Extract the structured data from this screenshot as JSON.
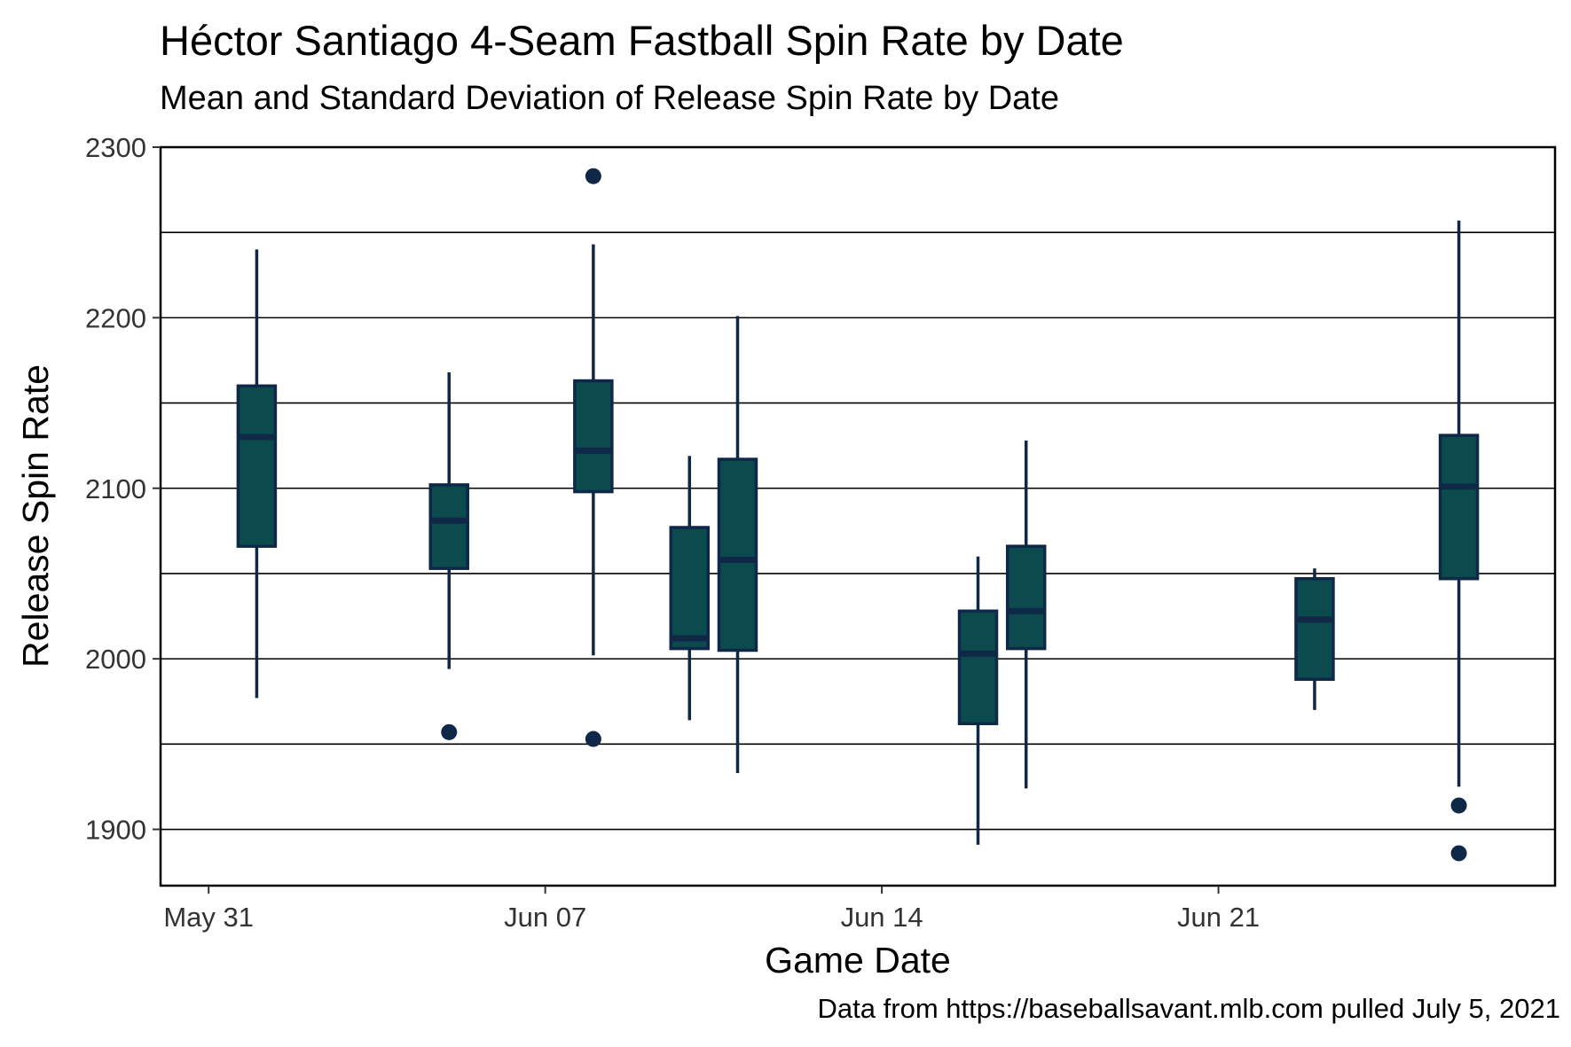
{
  "chart_data": {
    "type": "box",
    "title": "Héctor Santiago 4-Seam Fastball Spin Rate by Date",
    "subtitle": "Mean and Standard Deviation of Release Spin Rate by Date",
    "xlabel": "Game Date",
    "ylabel": "Release Spin Rate",
    "caption": "Data from https://baseballsavant.mlb.com pulled July 5, 2021",
    "x_ticks": [
      {
        "label": "May 31",
        "date": "2021-05-31"
      },
      {
        "label": "Jun 07",
        "date": "2021-06-07"
      },
      {
        "label": "Jun 14",
        "date": "2021-06-14"
      },
      {
        "label": "Jun 21",
        "date": "2021-06-21"
      }
    ],
    "xlim": [
      "2021-05-30",
      "2021-06-28"
    ],
    "y_ticks": [
      1900,
      2000,
      2100,
      2200,
      2300
    ],
    "ylim": [
      1867,
      2300
    ],
    "grid": {
      "major_y": true,
      "minor_y": true,
      "x": false
    },
    "box_fill": "#0b4a4d",
    "box_stroke": "#0f2847",
    "boxes": [
      {
        "date": "2021-06-01",
        "whisker_low": 1977,
        "q1": 2066,
        "median": 2130,
        "q3": 2160,
        "whisker_high": 2240,
        "outliers": []
      },
      {
        "date": "2021-06-05",
        "whisker_low": 1994,
        "q1": 2053,
        "median": 2081,
        "q3": 2102,
        "whisker_high": 2168,
        "outliers": [
          1957
        ]
      },
      {
        "date": "2021-06-08",
        "whisker_low": 2002,
        "q1": 2098,
        "median": 2122,
        "q3": 2163,
        "whisker_high": 2243,
        "outliers": [
          2283,
          1953
        ]
      },
      {
        "date": "2021-06-10",
        "whisker_low": 1964,
        "q1": 2006,
        "median": 2012,
        "q3": 2077,
        "whisker_high": 2119,
        "outliers": []
      },
      {
        "date": "2021-06-11",
        "whisker_low": 1933,
        "q1": 2005,
        "median": 2058,
        "q3": 2117,
        "whisker_high": 2201,
        "outliers": []
      },
      {
        "date": "2021-06-16",
        "whisker_low": 1891,
        "q1": 1962,
        "median": 2003,
        "q3": 2028,
        "whisker_high": 2060,
        "outliers": []
      },
      {
        "date": "2021-06-17",
        "whisker_low": 1924,
        "q1": 2006,
        "median": 2028,
        "q3": 2066,
        "whisker_high": 2128,
        "outliers": []
      },
      {
        "date": "2021-06-23",
        "whisker_low": 1970,
        "q1": 1988,
        "median": 2023,
        "q3": 2047,
        "whisker_high": 2053,
        "outliers": []
      },
      {
        "date": "2021-06-26",
        "whisker_low": 1925,
        "q1": 2047,
        "median": 2101,
        "q3": 2131,
        "whisker_high": 2257,
        "outliers": [
          1914,
          1886
        ]
      }
    ]
  }
}
